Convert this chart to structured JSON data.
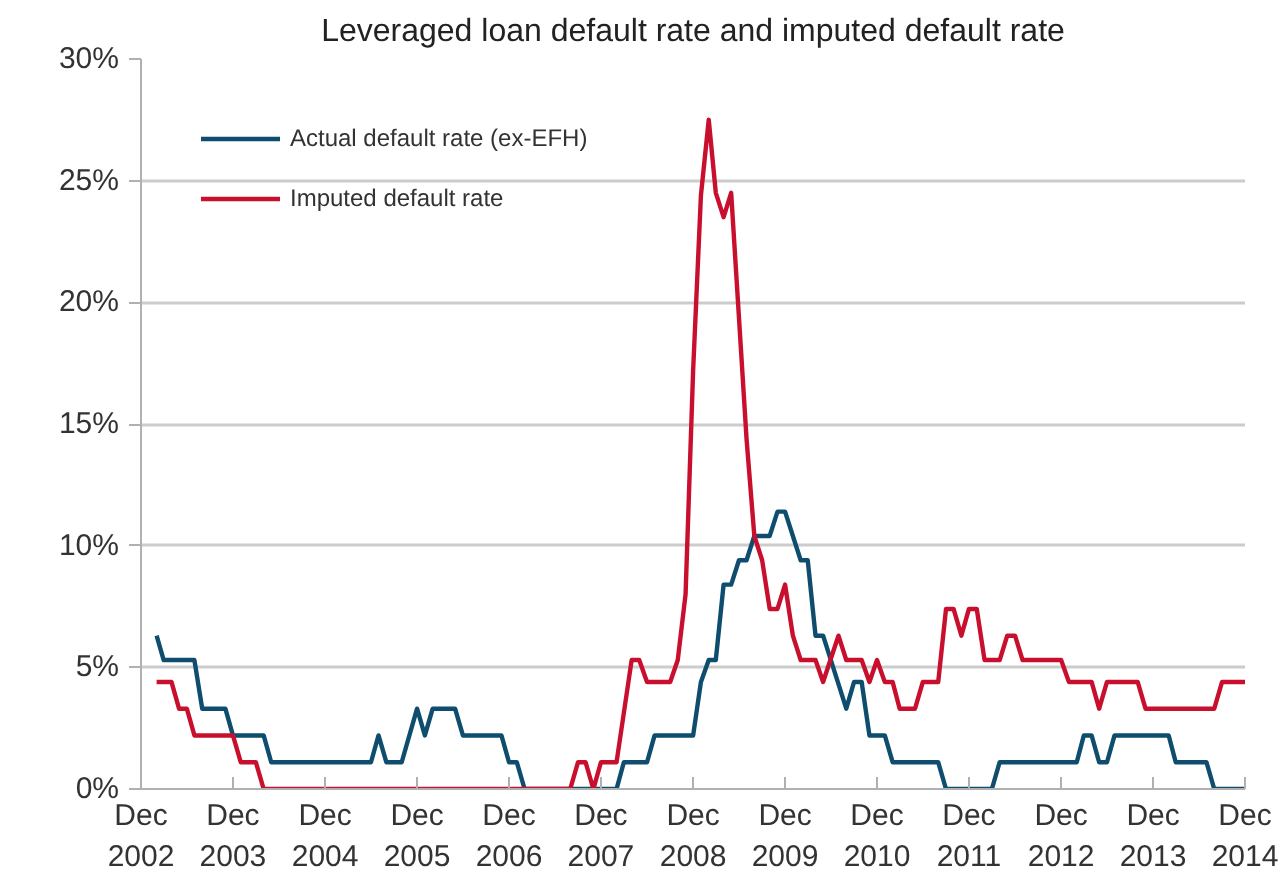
{
  "chart_data": {
    "type": "line",
    "title": "Leveraged loan default rate and imputed default rate",
    "xlim": [
      "2002-12",
      "2014-12"
    ],
    "xticks": [
      {
        "value": "2002-12",
        "label": "Dec 2002"
      },
      {
        "value": "2003-12",
        "label": "Dec 2003"
      },
      {
        "value": "2004-12",
        "label": "Dec 2004"
      },
      {
        "value": "2005-12",
        "label": "Dec 2005"
      },
      {
        "value": "2006-12",
        "label": "Dec 2006"
      },
      {
        "value": "2007-12",
        "label": "Dec 2007"
      },
      {
        "value": "2008-12",
        "label": "Dec 2008"
      },
      {
        "value": "2009-12",
        "label": "Dec 2009"
      },
      {
        "value": "2010-12",
        "label": "Dec 2010"
      },
      {
        "value": "2011-12",
        "label": "Dec 2011"
      },
      {
        "value": "2012-12",
        "label": "Dec 2012"
      },
      {
        "value": "2013-12",
        "label": "Dec 2013"
      },
      {
        "value": "2014-12",
        "label": "Dec 2014"
      }
    ],
    "ylim": [
      0,
      30
    ],
    "yticks": [
      {
        "value": 0,
        "label": "0%"
      },
      {
        "value": 5,
        "label": "5%"
      },
      {
        "value": 10,
        "label": "10%"
      },
      {
        "value": 15,
        "label": "15%"
      },
      {
        "value": 20,
        "label": "20%"
      },
      {
        "value": 25,
        "label": "25%"
      },
      {
        "value": 30,
        "label": "30%"
      }
    ],
    "grid": "y",
    "legend": "top left",
    "line_style": "solid",
    "series": [
      {
        "name": "Actual default rate (ex-EFH)",
        "color": "#0e4d6e",
        "x": [
          "2003-02",
          "2003-03",
          "2003-07",
          "2003-08",
          "2003-11",
          "2003-12",
          "2004-04",
          "2004-05",
          "2005-06",
          "2005-07",
          "2005-08",
          "2005-10",
          "2005-12",
          "2006-01",
          "2006-02",
          "2006-05",
          "2006-06",
          "2006-11",
          "2006-12",
          "2007-01",
          "2007-02",
          "2008-02",
          "2008-03",
          "2008-06",
          "2008-07",
          "2008-12",
          "2009-01",
          "2009-02",
          "2009-03",
          "2009-04",
          "2009-05",
          "2009-06",
          "2009-07",
          "2009-08",
          "2009-10",
          "2009-11",
          "2009-12",
          "2010-02",
          "2010-03",
          "2010-04",
          "2010-05",
          "2010-08",
          "2010-09",
          "2010-10",
          "2010-11",
          "2011-01",
          "2011-02",
          "2011-08",
          "2011-09",
          "2012-03",
          "2012-04",
          "2013-02",
          "2013-03",
          "2013-04",
          "2013-05",
          "2013-06",
          "2013-07",
          "2014-02",
          "2014-03",
          "2014-07",
          "2014-08",
          "2014-12"
        ],
        "values": [
          6.3,
          5.3,
          5.3,
          3.3,
          3.3,
          2.2,
          2.2,
          1.1,
          1.1,
          2.2,
          1.1,
          1.1,
          3.3,
          2.2,
          3.3,
          3.3,
          2.2,
          2.2,
          1.1,
          1.1,
          0,
          0,
          1.1,
          1.1,
          2.2,
          2.2,
          4.4,
          5.3,
          5.3,
          8.4,
          8.4,
          9.4,
          9.4,
          10.4,
          10.4,
          11.4,
          11.4,
          9.4,
          9.4,
          6.3,
          6.3,
          3.3,
          4.4,
          4.4,
          2.2,
          2.2,
          1.1,
          1.1,
          0,
          0,
          1.1,
          1.1,
          2.2,
          2.2,
          1.1,
          1.1,
          2.2,
          2.2,
          1.1,
          1.1,
          0,
          0
        ]
      },
      {
        "name": "Imputed default rate",
        "color": "#c8102e",
        "x": [
          "2003-02",
          "2003-04",
          "2003-05",
          "2003-06",
          "2003-07",
          "2003-12",
          "2004-01",
          "2004-03",
          "2004-04",
          "2007-08",
          "2007-09",
          "2007-10",
          "2007-11",
          "2007-12",
          "2008-02",
          "2008-04",
          "2008-05",
          "2008-06",
          "2008-09",
          "2008-10",
          "2008-11",
          "2008-12",
          "2009-01",
          "2009-02",
          "2009-03",
          "2009-04",
          "2009-05",
          "2009-07",
          "2009-08",
          "2009-09",
          "2009-10",
          "2009-11",
          "2009-12",
          "2010-01",
          "2010-02",
          "2010-04",
          "2010-05",
          "2010-07",
          "2010-08",
          "2010-10",
          "2010-11",
          "2010-12",
          "2011-01",
          "2011-02",
          "2011-03",
          "2011-05",
          "2011-06",
          "2011-08",
          "2011-09",
          "2011-10",
          "2011-11",
          "2011-12",
          "2012-01",
          "2012-02",
          "2012-04",
          "2012-05",
          "2012-06",
          "2012-07",
          "2012-12",
          "2013-01",
          "2013-04",
          "2013-05",
          "2013-06",
          "2013-10",
          "2013-11",
          "2014-08",
          "2014-09",
          "2014-12"
        ],
        "values": [
          4.4,
          4.4,
          3.3,
          3.3,
          2.2,
          2.2,
          1.1,
          1.1,
          0,
          0,
          1.1,
          1.1,
          0,
          1.1,
          1.1,
          5.3,
          5.3,
          4.4,
          4.4,
          5.3,
          8.0,
          17.2,
          24.4,
          27.5,
          24.5,
          23.5,
          24.5,
          14.4,
          10.4,
          9.4,
          7.4,
          7.4,
          8.4,
          6.3,
          5.3,
          5.3,
          4.4,
          6.3,
          5.3,
          5.3,
          4.4,
          5.3,
          4.4,
          4.4,
          3.3,
          3.3,
          4.4,
          4.4,
          7.4,
          7.4,
          6.3,
          7.4,
          7.4,
          5.3,
          5.3,
          6.3,
          6.3,
          5.3,
          5.3,
          4.4,
          4.4,
          3.3,
          4.4,
          4.4,
          3.3,
          3.3,
          4.4,
          4.4
        ]
      }
    ]
  }
}
